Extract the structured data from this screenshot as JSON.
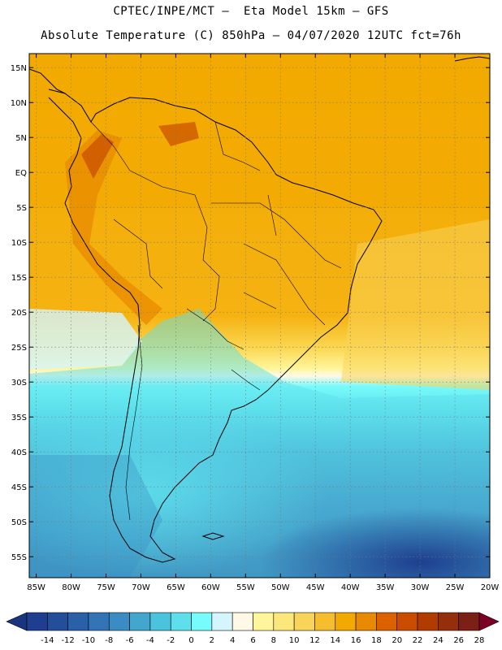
{
  "header": {
    "line1": "CPTEC/INPE/MCT –  Eta Model 15km – GFS",
    "line2": "Absolute Temperature (C) 850hPa – 04/07/2020 12UTC fct=76h"
  },
  "axes": {
    "lat_labels": [
      "15N",
      "10N",
      "5N",
      "EQ",
      "5S",
      "10S",
      "15S",
      "20S",
      "25S",
      "30S",
      "35S",
      "40S",
      "45S",
      "50S",
      "55S"
    ],
    "lon_labels": [
      "85W",
      "80W",
      "75W",
      "70W",
      "65W",
      "60W",
      "55W",
      "50W",
      "45W",
      "40W",
      "35W",
      "30W",
      "25W",
      "20W"
    ],
    "lon_range_deg": [
      -86,
      -20
    ],
    "lat_range_deg": [
      -58,
      17
    ]
  },
  "colorbar": {
    "labels": [
      "-14",
      "-12",
      "-10",
      "-8",
      "-6",
      "-4",
      "-2",
      "0",
      "2",
      "4",
      "6",
      "8",
      "10",
      "12",
      "14",
      "16",
      "18",
      "20",
      "22",
      "24",
      "26",
      "28"
    ],
    "colors": [
      "#1e3f8f",
      "#234f9a",
      "#2a60a8",
      "#3274b6",
      "#3a8cc3",
      "#42a6cf",
      "#4cc3dd",
      "#5ee0ec",
      "#78fbfb",
      "#d4f5fd",
      "#fff8e6",
      "#fff59a",
      "#fce77a",
      "#f9d45a",
      "#f5be2f",
      "#f2a900",
      "#e88a00",
      "#dc6200",
      "#c94c00",
      "#b23c00",
      "#952e0a",
      "#7c1f15"
    ],
    "under_color": "#1a3580",
    "over_color": "#7a0024"
  }
}
